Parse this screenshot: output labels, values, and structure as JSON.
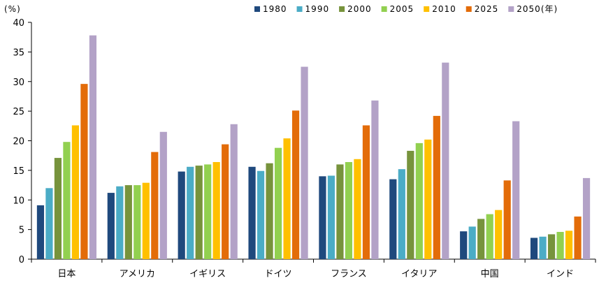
{
  "chart_data": {
    "type": "bar",
    "unit_label": "(%)",
    "categories": [
      "日本",
      "アメリカ",
      "イギリス",
      "ドイツ",
      "フランス",
      "イタリア",
      "中国",
      "インド"
    ],
    "series": [
      {
        "name": "1980",
        "color": "#1f497d",
        "values": [
          9.1,
          11.2,
          14.8,
          15.6,
          14.0,
          13.5,
          4.7,
          3.6
        ]
      },
      {
        "name": "1990",
        "color": "#4bacc6",
        "values": [
          12.0,
          12.3,
          15.6,
          14.9,
          14.1,
          15.2,
          5.5,
          3.8
        ]
      },
      {
        "name": "2000",
        "color": "#77933c",
        "values": [
          17.1,
          12.5,
          15.8,
          16.2,
          16.0,
          18.3,
          6.8,
          4.2
        ]
      },
      {
        "name": "2005",
        "color": "#92d050",
        "values": [
          19.8,
          12.5,
          16.0,
          18.8,
          16.4,
          19.6,
          7.6,
          4.6
        ]
      },
      {
        "name": "2010",
        "color": "#ffc000",
        "values": [
          22.6,
          12.9,
          16.4,
          20.4,
          16.9,
          20.2,
          8.3,
          4.8
        ]
      },
      {
        "name": "2025",
        "color": "#e36c09",
        "values": [
          29.6,
          18.1,
          19.4,
          25.1,
          22.6,
          24.2,
          13.3,
          7.2
        ]
      },
      {
        "name": "2050(年)",
        "color": "#b3a2c7",
        "values": [
          37.8,
          21.5,
          22.8,
          32.5,
          26.8,
          33.2,
          23.3,
          13.7
        ]
      }
    ],
    "ylim": [
      0,
      40
    ],
    "yticks": [
      "0",
      "5",
      "10",
      "15",
      "20",
      "25",
      "30",
      "35",
      "40"
    ],
    "legend_position": "top-right",
    "grid": false
  }
}
